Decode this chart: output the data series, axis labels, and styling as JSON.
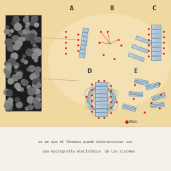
{
  "bg_main": "#f0d9a0",
  "bg_light": "#f7e8c0",
  "dark_panel_bg": "#1c1c1c",
  "clay_color": "#b8cfe0",
  "clay_mid": "#9ab5cc",
  "clay_dark": "#7a9ab2",
  "clay_edge": "#5a7a90",
  "drug_color": "#dd1111",
  "label_color": "#333333",
  "line_color": "#c09090",
  "polymer_color": "#7799bb",
  "bg_bottom": "#f5f0ea",
  "text_bottom1": "as en que el fármaco puede interaccionar con",
  "text_bottom2": "   una micrografía electrónica  de los sistema",
  "drug_legend": "DRUG"
}
